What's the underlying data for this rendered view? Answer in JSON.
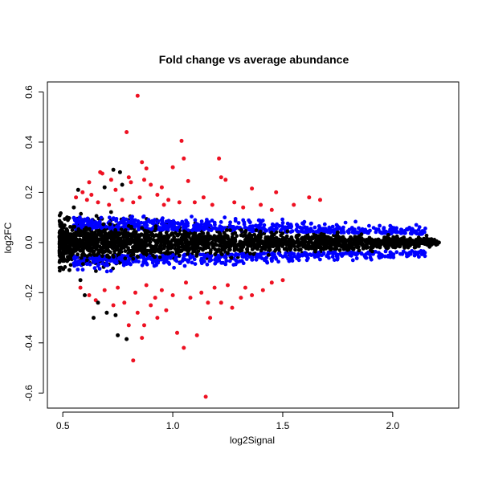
{
  "chart_data": {
    "type": "scatter",
    "title": "Fold change vs average abundance",
    "xlabel": "log2Signal",
    "ylabel": "log2FC",
    "xlim": [
      0.43,
      2.3
    ],
    "ylim": [
      -0.66,
      0.64
    ],
    "x_ticks": [
      "0.5",
      "1.0",
      "1.5",
      "2.0"
    ],
    "x_tick_values": [
      0.5,
      1.0,
      1.5,
      2.0
    ],
    "y_ticks": [
      "-0.6",
      "-0.4",
      "-0.2",
      "0.0",
      "0.2",
      "0.4",
      "0.6"
    ],
    "y_tick_values": [
      -0.6,
      -0.4,
      -0.2,
      0.0,
      0.2,
      0.4,
      0.6
    ],
    "grid": false,
    "colors": {
      "not_significant": "#000000",
      "significant_high_signal": "#0000ff",
      "significant_fold_change": "#ee1122"
    },
    "series": [
      {
        "color": "#ee1122",
        "points": [
          [
            0.84,
            0.585
          ],
          [
            0.79,
            0.44
          ],
          [
            1.04,
            0.405
          ],
          [
            0.86,
            0.32
          ],
          [
            1.05,
            0.335
          ],
          [
            1.21,
            0.335
          ],
          [
            0.88,
            0.295
          ],
          [
            1.0,
            0.3
          ],
          [
            1.07,
            0.245
          ],
          [
            0.67,
            0.28
          ],
          [
            0.68,
            0.275
          ],
          [
            0.72,
            0.25
          ],
          [
            0.8,
            0.26
          ],
          [
            0.81,
            0.24
          ],
          [
            0.87,
            0.25
          ],
          [
            0.95,
            0.22
          ],
          [
            1.22,
            0.26
          ],
          [
            1.24,
            0.25
          ],
          [
            1.36,
            0.215
          ],
          [
            1.47,
            0.2
          ],
          [
            1.62,
            0.18
          ],
          [
            1.67,
            0.17
          ],
          [
            0.62,
            0.24
          ],
          [
            0.9,
            0.23
          ],
          [
            0.56,
            0.18
          ],
          [
            0.59,
            0.2
          ],
          [
            0.63,
            0.19
          ],
          [
            0.74,
            0.21
          ],
          [
            0.77,
            0.17
          ],
          [
            0.85,
            0.18
          ],
          [
            0.93,
            0.19
          ],
          [
            0.98,
            0.17
          ],
          [
            1.1,
            0.16
          ],
          [
            1.14,
            0.18
          ],
          [
            1.18,
            0.15
          ],
          [
            1.28,
            0.16
          ],
          [
            1.32,
            0.14
          ],
          [
            1.4,
            0.15
          ],
          [
            1.45,
            0.13
          ],
          [
            1.55,
            0.15
          ],
          [
            0.71,
            0.15
          ],
          [
            0.82,
            0.16
          ],
          [
            0.96,
            0.15
          ],
          [
            1.03,
            0.16
          ],
          [
            0.61,
            0.17
          ],
          [
            0.66,
            0.16
          ],
          [
            1.15,
            -0.615
          ],
          [
            0.82,
            -0.47
          ],
          [
            1.05,
            -0.42
          ],
          [
            0.86,
            -0.38
          ],
          [
            1.11,
            -0.37
          ],
          [
            1.02,
            -0.36
          ],
          [
            0.8,
            -0.33
          ],
          [
            0.93,
            -0.3
          ],
          [
            0.87,
            -0.33
          ],
          [
            0.84,
            -0.28
          ],
          [
            0.62,
            -0.21
          ],
          [
            0.65,
            -0.23
          ],
          [
            0.73,
            -0.25
          ],
          [
            0.78,
            -0.24
          ],
          [
            0.9,
            -0.25
          ],
          [
            0.97,
            -0.27
          ],
          [
            1.17,
            -0.3
          ],
          [
            1.22,
            -0.24
          ],
          [
            1.27,
            -0.26
          ],
          [
            1.31,
            -0.22
          ],
          [
            1.36,
            -0.21
          ],
          [
            1.41,
            -0.19
          ],
          [
            1.08,
            -0.22
          ],
          [
            1.13,
            -0.2
          ],
          [
            0.69,
            -0.19
          ],
          [
            0.75,
            -0.18
          ],
          [
            0.83,
            -0.2
          ],
          [
            0.95,
            -0.19
          ],
          [
            1.0,
            -0.21
          ],
          [
            1.19,
            -0.18
          ],
          [
            1.25,
            -0.17
          ],
          [
            1.45,
            -0.16
          ],
          [
            1.5,
            -0.15
          ],
          [
            0.58,
            -0.18
          ],
          [
            0.88,
            -0.17
          ],
          [
            1.06,
            -0.16
          ],
          [
            0.92,
            -0.22
          ],
          [
            1.33,
            -0.18
          ],
          [
            1.16,
            -0.24
          ]
        ]
      },
      {
        "color": "#000000",
        "points": [
          [
            0.79,
            -0.385
          ],
          [
            0.75,
            -0.37
          ],
          [
            0.74,
            -0.29
          ],
          [
            0.7,
            -0.28
          ],
          [
            0.64,
            -0.3
          ],
          [
            0.6,
            -0.21
          ],
          [
            0.73,
            0.29
          ],
          [
            0.76,
            0.28
          ],
          [
            0.57,
            0.21
          ],
          [
            0.52,
            0.1
          ],
          [
            0.5,
            0.06
          ],
          [
            0.49,
            -0.01
          ],
          [
            0.51,
            -0.07
          ],
          [
            0.53,
            -0.11
          ],
          [
            0.55,
            0.14
          ],
          [
            0.58,
            -0.15
          ],
          [
            0.69,
            0.22
          ],
          [
            0.77,
            0.23
          ],
          [
            0.66,
            -0.24
          ],
          [
            1.75,
            0.04
          ],
          [
            1.9,
            -0.03
          ],
          [
            2.05,
            0.02
          ],
          [
            2.15,
            0.01
          ],
          [
            2.21,
            0.0
          ],
          [
            1.98,
            0.03
          ],
          [
            2.1,
            -0.02
          ]
        ]
      }
    ]
  }
}
